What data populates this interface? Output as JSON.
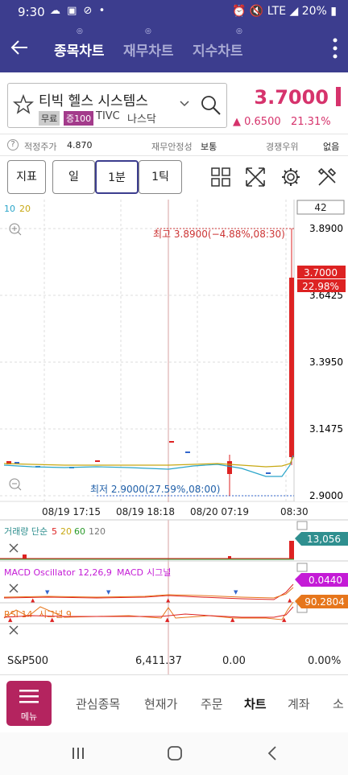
{
  "status": {
    "time": "9:30",
    "battery": "20%",
    "net": "LTE"
  },
  "header": {
    "tabs": [
      {
        "label": "종목차트",
        "active": true
      },
      {
        "label": "재무차트",
        "active": false
      },
      {
        "label": "지수차트",
        "active": false
      }
    ]
  },
  "stock": {
    "name": "티빅 헬스 시스템스",
    "tag_free": "무료",
    "tag_margin": "증100",
    "ticker": "TIVC",
    "market": "나스닥",
    "price": "3.7000",
    "change": "▲ 0.6500",
    "change_pct": "21.31%"
  },
  "info": {
    "fair_label": "적정주가",
    "fair_value": "4.870",
    "fin_label": "재무안정성",
    "fin_value": "보통",
    "comp_label": "경쟁우위",
    "comp_value": "없음"
  },
  "toolbar": {
    "indicator": "지표",
    "day": "일",
    "minute": "1분",
    "tick": "1틱"
  },
  "chart": {
    "ma_labels": [
      "10",
      "20"
    ],
    "count": "42",
    "y_ticks": [
      "3.8900",
      "3.6425",
      "3.3950",
      "3.1475",
      "2.9000"
    ],
    "high_label": "최고 3.8900(−4.88%,08:30)",
    "low_label": "최저 2.9000(27.59%,08:00)",
    "price_tag": "3.7000",
    "pct_tag": "22.98%",
    "x_labels": [
      "08/19 17:15",
      "08/19 18:18",
      "08/20 07:19",
      "08:30"
    ],
    "volume_title": "거래량 단순",
    "volume_ma": [
      "5",
      "20",
      "60",
      "120"
    ],
    "volume_value": "13,056",
    "macd_title": "MACD Oscillator 12,26,9",
    "macd_sub": "MACD",
    "macd_signal": "시그널",
    "macd_value": "0.0440",
    "rsi_title": "RSI 14",
    "rsi_signal": "시그널 9",
    "rsi_value": "90.2804"
  },
  "index_row": {
    "name": "S&P500",
    "value": "6,411.37",
    "change": "0.00",
    "pct": "0.00%"
  },
  "bottom_nav": {
    "menu": "메뉴",
    "items": [
      {
        "label": "관심종목",
        "active": false
      },
      {
        "label": "현재가",
        "active": false
      },
      {
        "label": "주문",
        "active": false
      },
      {
        "label": "차트",
        "active": true
      },
      {
        "label": "계좌",
        "active": false
      },
      {
        "label": "소",
        "active": false
      }
    ]
  },
  "colors": {
    "brand": "#3c3d8e",
    "up": "#d6336c",
    "menu": "#b4245f",
    "macd": "#c41bd6",
    "rsi": "#e6761c",
    "volume": "#2f8f8f"
  }
}
